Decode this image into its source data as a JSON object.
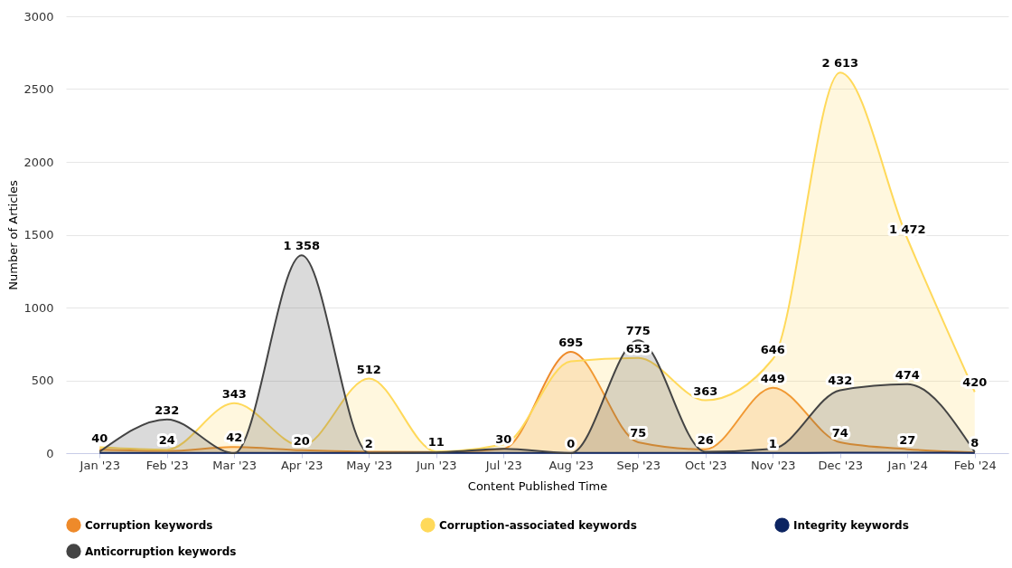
{
  "chart_data": {
    "type": "area",
    "xlabel": "Content Published Time",
    "ylabel": "Number of Articles",
    "categories": [
      "Jan '23",
      "Feb '23",
      "Mar '23",
      "Apr '23",
      "May '23",
      "Jun '23",
      "Jul '23",
      "Aug '23",
      "Sep '23",
      "Oct '23",
      "Nov '23",
      "Dec '23",
      "Jan '24",
      "Feb '24"
    ],
    "series": [
      {
        "name": "Corruption keywords",
        "color": "#ee8a2a",
        "values": [
          25,
          15,
          42,
          20,
          10,
          8,
          30,
          695,
          75,
          26,
          449,
          74,
          27,
          5
        ],
        "value_labels": [
          null,
          null,
          "42",
          "20",
          null,
          null,
          "30",
          "695",
          "75",
          "26",
          "449",
          "74",
          "27",
          null
        ]
      },
      {
        "name": "Corruption-associated keywords",
        "color": "#ffd95a",
        "values": [
          40,
          24,
          343,
          50,
          512,
          11,
          60,
          630,
          653,
          363,
          646,
          2613,
          1472,
          420
        ],
        "value_labels": [
          "40",
          "24",
          "343",
          null,
          "512",
          "11",
          null,
          null,
          "653",
          "363",
          "646",
          "2 613",
          "1 472",
          "420"
        ]
      },
      {
        "name": "Integrity keywords",
        "color": "#0c2461",
        "values": [
          2,
          2,
          2,
          2,
          2,
          2,
          2,
          2,
          2,
          2,
          1,
          3,
          3,
          2
        ],
        "value_labels": [
          null,
          null,
          null,
          null,
          null,
          null,
          null,
          null,
          null,
          null,
          "1",
          null,
          null,
          null
        ]
      },
      {
        "name": "Anticorruption keywords",
        "color": "#444444",
        "values": [
          10,
          232,
          0,
          1358,
          2,
          5,
          30,
          0,
          775,
          10,
          30,
          432,
          474,
          8
        ],
        "value_labels": [
          null,
          "232",
          null,
          "1 358",
          "2",
          null,
          null,
          "0",
          "775",
          null,
          null,
          "432",
          "474",
          "8"
        ]
      }
    ],
    "ylim": [
      0,
      3000
    ],
    "yticks": [
      0,
      500,
      1000,
      1500,
      2000,
      2500,
      3000
    ],
    "grid": "y",
    "legend": "bottom",
    "marker": "none"
  }
}
